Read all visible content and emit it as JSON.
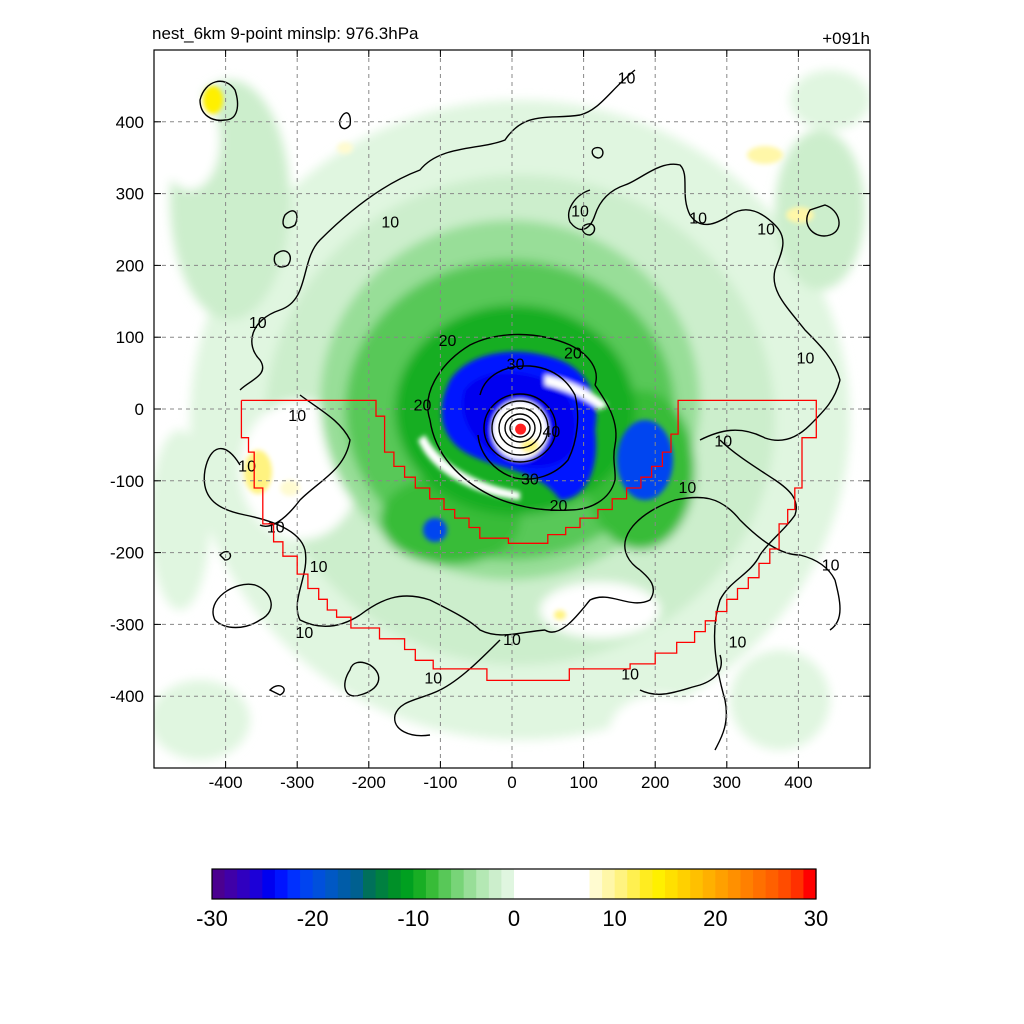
{
  "title_left": "nest_6km  9-point minslp: 976.3hPa",
  "title_right": "+091h",
  "chart_data": {
    "type": "heatmap",
    "title": "nest_6km  9-point minslp: 976.3hPa",
    "forecast_hour": "+091h",
    "xlim": [
      -500,
      500
    ],
    "ylim": [
      -500,
      500
    ],
    "x_ticks": [
      -400,
      -300,
      -200,
      -100,
      0,
      100,
      200,
      300,
      400
    ],
    "x_tick_labels": [
      "-400",
      "-300",
      "-200",
      "-100",
      "0",
      "100",
      "200",
      "300",
      "400"
    ],
    "y_ticks": [
      400,
      300,
      200,
      100,
      0,
      -100,
      -200,
      -300,
      -400
    ],
    "y_tick_labels": [
      "400",
      "300",
      "200",
      "100",
      "0",
      "-100",
      "-200",
      "-300",
      "-400"
    ],
    "grid": true,
    "storm_center": [
      12,
      -28
    ],
    "contour_levels": [
      10,
      20,
      30,
      40
    ],
    "contour_labels": [
      {
        "text": "10",
        "x": 160,
        "y": 460
      },
      {
        "text": "10",
        "x": -170,
        "y": 260
      },
      {
        "text": "10",
        "x": -355,
        "y": 120
      },
      {
        "text": "10",
        "x": 95,
        "y": 275
      },
      {
        "text": "10",
        "x": 260,
        "y": 265
      },
      {
        "text": "10",
        "x": 355,
        "y": 250
      },
      {
        "text": "10",
        "x": 410,
        "y": 70
      },
      {
        "text": "10",
        "x": -300,
        "y": -10
      },
      {
        "text": "10",
        "x": -370,
        "y": -80
      },
      {
        "text": "10",
        "x": -330,
        "y": -165
      },
      {
        "text": "10",
        "x": -270,
        "y": -220
      },
      {
        "text": "10",
        "x": -290,
        "y": -312
      },
      {
        "text": "10",
        "x": -110,
        "y": -375
      },
      {
        "text": "10",
        "x": 0,
        "y": -322
      },
      {
        "text": "10",
        "x": 165,
        "y": -370
      },
      {
        "text": "10",
        "x": 315,
        "y": -325
      },
      {
        "text": "10",
        "x": 445,
        "y": -218
      },
      {
        "text": "10",
        "x": 245,
        "y": -110
      },
      {
        "text": "10",
        "x": 295,
        "y": -45
      },
      {
        "text": "20",
        "x": -125,
        "y": 5
      },
      {
        "text": "20",
        "x": -90,
        "y": 95
      },
      {
        "text": "20",
        "x": 85,
        "y": 77
      },
      {
        "text": "20",
        "x": 65,
        "y": -135
      },
      {
        "text": "30",
        "x": 5,
        "y": 62
      },
      {
        "text": "30",
        "x": 25,
        "y": -98
      },
      {
        "text": "40",
        "x": 55,
        "y": -32
      }
    ],
    "colorbar": {
      "min": -30,
      "max": 30,
      "ticks": [
        -30,
        -20,
        -10,
        0,
        10,
        20,
        30
      ],
      "tick_labels": [
        "-30",
        "-20",
        "-10",
        "0",
        "10",
        "20",
        "30"
      ],
      "colors": [
        "#4b0090",
        "#4000a8",
        "#3000c0",
        "#1c00d8",
        "#0000f0",
        "#0014ff",
        "#0030ff",
        "#0044f0",
        "#0050dc",
        "#0058c4",
        "#005ca8",
        "#006090",
        "#00705a",
        "#008040",
        "#009028",
        "#00a020",
        "#18ae24",
        "#38bc38",
        "#58c858",
        "#78d478",
        "#98de98",
        "#b4e8b4",
        "#cceecc",
        "#e0f6e0",
        "#ffffff",
        "#ffffff",
        "#ffffff",
        "#ffffff",
        "#ffffff",
        "#ffffff",
        "#fffbd0",
        "#fff7a8",
        "#fff380",
        "#fff050",
        "#ffec20",
        "#fff000",
        "#ffe000",
        "#ffd000",
        "#ffc000",
        "#ffb000",
        "#ffa000",
        "#ff9000",
        "#ff8000",
        "#ff7000",
        "#ff6000",
        "#ff4c00",
        "#ff3000",
        "#ff0000"
      ]
    },
    "swath_boundary": {
      "color": "#ff0000",
      "points": [
        [
          -378,
          12
        ],
        [
          -190,
          12
        ],
        [
          -190,
          -10
        ],
        [
          -178,
          -10
        ],
        [
          -178,
          -60
        ],
        [
          -165,
          -60
        ],
        [
          -165,
          -80
        ],
        [
          -150,
          -80
        ],
        [
          -150,
          -95
        ],
        [
          -135,
          -95
        ],
        [
          -135,
          -110
        ],
        [
          -115,
          -110
        ],
        [
          -115,
          -125
        ],
        [
          -95,
          -125
        ],
        [
          -95,
          -140
        ],
        [
          -80,
          -140
        ],
        [
          -80,
          -152
        ],
        [
          -60,
          -152
        ],
        [
          -60,
          -165
        ],
        [
          -45,
          -165
        ],
        [
          -45,
          -180
        ],
        [
          -5,
          -180
        ],
        [
          -5,
          -187
        ],
        [
          50,
          -187
        ],
        [
          50,
          -175
        ],
        [
          75,
          -175
        ],
        [
          75,
          -165
        ],
        [
          95,
          -165
        ],
        [
          95,
          -152
        ],
        [
          120,
          -152
        ],
        [
          120,
          -140
        ],
        [
          140,
          -140
        ],
        [
          140,
          -125
        ],
        [
          160,
          -125
        ],
        [
          160,
          -110
        ],
        [
          180,
          -110
        ],
        [
          180,
          -95
        ],
        [
          195,
          -95
        ],
        [
          195,
          -80
        ],
        [
          210,
          -80
        ],
        [
          210,
          -60
        ],
        [
          222,
          -60
        ],
        [
          222,
          -35
        ],
        [
          232,
          -35
        ],
        [
          232,
          12
        ],
        [
          425,
          12
        ],
        [
          425,
          -40
        ],
        [
          405,
          -40
        ],
        [
          405,
          -110
        ],
        [
          395,
          -110
        ],
        [
          395,
          -140
        ],
        [
          385,
          -140
        ],
        [
          385,
          -160
        ],
        [
          373,
          -160
        ],
        [
          373,
          -195
        ],
        [
          360,
          -195
        ],
        [
          360,
          -215
        ],
        [
          345,
          -215
        ],
        [
          345,
          -235
        ],
        [
          330,
          -235
        ],
        [
          330,
          -250
        ],
        [
          315,
          -250
        ],
        [
          315,
          -265
        ],
        [
          300,
          -265
        ],
        [
          300,
          -282
        ],
        [
          285,
          -282
        ],
        [
          285,
          -295
        ],
        [
          270,
          -295
        ],
        [
          270,
          -310
        ],
        [
          255,
          -310
        ],
        [
          255,
          -325
        ],
        [
          230,
          -325
        ],
        [
          230,
          -340
        ],
        [
          200,
          -340
        ],
        [
          200,
          -355
        ],
        [
          165,
          -355
        ],
        [
          165,
          -362
        ],
        [
          80,
          -362
        ],
        [
          80,
          -378
        ],
        [
          -35,
          -378
        ],
        [
          -35,
          -362
        ],
        [
          -110,
          -362
        ],
        [
          -110,
          -350
        ],
        [
          -135,
          -350
        ],
        [
          -135,
          -335
        ],
        [
          -150,
          -335
        ],
        [
          -150,
          -320
        ],
        [
          -185,
          -320
        ],
        [
          -185,
          -305
        ],
        [
          -225,
          -305
        ],
        [
          -225,
          -290
        ],
        [
          -245,
          -290
        ],
        [
          -245,
          -280
        ],
        [
          -258,
          -280
        ],
        [
          -258,
          -265
        ],
        [
          -270,
          -265
        ],
        [
          -270,
          -250
        ],
        [
          -285,
          -250
        ],
        [
          -285,
          -230
        ],
        [
          -300,
          -230
        ],
        [
          -300,
          -205
        ],
        [
          -320,
          -205
        ],
        [
          -320,
          -185
        ],
        [
          -333,
          -185
        ],
        [
          -333,
          -160
        ],
        [
          -348,
          -160
        ],
        [
          -348,
          -110
        ],
        [
          -360,
          -110
        ],
        [
          -360,
          -60
        ],
        [
          -368,
          -60
        ],
        [
          -368,
          -40
        ],
        [
          -378,
          -40
        ],
        [
          -378,
          12
        ]
      ]
    }
  }
}
